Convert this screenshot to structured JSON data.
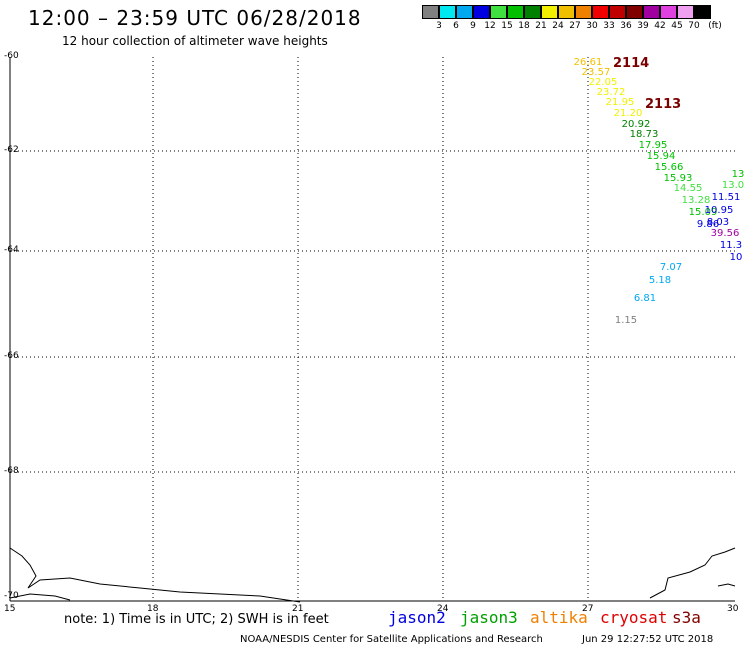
{
  "title": "12:00 – 23:59 UTC 06/28/2018",
  "subtitle": "12 hour collection of altimeter wave heights",
  "scale": {
    "unit": "(ft)",
    "colors": [
      "#808080",
      "#00e8f0",
      "#00a8f0",
      "#0000e0",
      "#40e040",
      "#00c000",
      "#008000",
      "#f0f000",
      "#f0c000",
      "#f08000",
      "#f00000",
      "#c00000",
      "#800000",
      "#a000a0",
      "#e040e0",
      "#f0a0f0",
      "#000000"
    ],
    "labels": [
      "3",
      "6",
      "9",
      "12",
      "15",
      "18",
      "21",
      "24",
      "27",
      "30",
      "33",
      "36",
      "39",
      "42",
      "45",
      "70"
    ]
  },
  "axes": {
    "lat_labels": [
      "-60",
      "-62",
      "-64",
      "-66",
      "-68",
      "-70"
    ],
    "lon_labels": [
      "15",
      "18",
      "21",
      "24",
      "27",
      "30"
    ]
  },
  "passes": [
    {
      "label": "2114",
      "color": "#7a0000"
    },
    {
      "label": "2113",
      "color": "#7a0000"
    }
  ],
  "points": [
    {
      "v": "26.61",
      "color": "#f0c000"
    },
    {
      "v": "23.57",
      "color": "#f0c000"
    },
    {
      "v": "22.05",
      "color": "#f0f000"
    },
    {
      "v": "23.72",
      "color": "#f0f000"
    },
    {
      "v": "21.95",
      "color": "#f0f000"
    },
    {
      "v": "21.20",
      "color": "#f0f000"
    },
    {
      "v": "20.92",
      "color": "#008000"
    },
    {
      "v": "18.73",
      "color": "#008000"
    },
    {
      "v": "17.95",
      "color": "#00c000"
    },
    {
      "v": "15.94",
      "color": "#00c000"
    },
    {
      "v": "15.66",
      "color": "#00c000"
    },
    {
      "v": "15.93",
      "color": "#00c000"
    },
    {
      "v": "14.55",
      "color": "#40e040"
    },
    {
      "v": "13.28",
      "color": "#40e040"
    },
    {
      "v": "15.09",
      "color": "#00c000"
    },
    {
      "v": "10.95",
      "color": "#0000e0"
    },
    {
      "v": "9.86",
      "color": "#0000e0"
    },
    {
      "v": "8.03",
      "color": "#0000e0"
    },
    {
      "v": "11.51",
      "color": "#0000e0"
    },
    {
      "v": "13",
      "color": "#00c000"
    },
    {
      "v": "13.0",
      "color": "#40e040"
    },
    {
      "v": "39.56",
      "color": "#a000a0"
    },
    {
      "v": "11.3",
      "color": "#0000e0"
    },
    {
      "v": "10",
      "color": "#0000e0"
    },
    {
      "v": "7.07",
      "color": "#00a8f0"
    },
    {
      "v": "5.18",
      "color": "#00a8f0"
    },
    {
      "v": "6.81",
      "color": "#00a8f0"
    },
    {
      "v": "1.15",
      "color": "#808080"
    }
  ],
  "legend": {
    "note": "note: 1) Time is in UTC; 2) SWH is in feet",
    "missions": [
      {
        "name": "jason2",
        "color": "#0000e0"
      },
      {
        "name": "jason3",
        "color": "#00a000"
      },
      {
        "name": "altika",
        "color": "#f08000"
      },
      {
        "name": "cryosat",
        "color": "#e00000"
      },
      {
        "name": "s3a",
        "color": "#800000"
      }
    ]
  },
  "footer": {
    "credit": "NOAA/NESDIS Center for Satellite Applications and Research",
    "timestamp": "Jun 29 12:27:52 UTC 2018"
  }
}
